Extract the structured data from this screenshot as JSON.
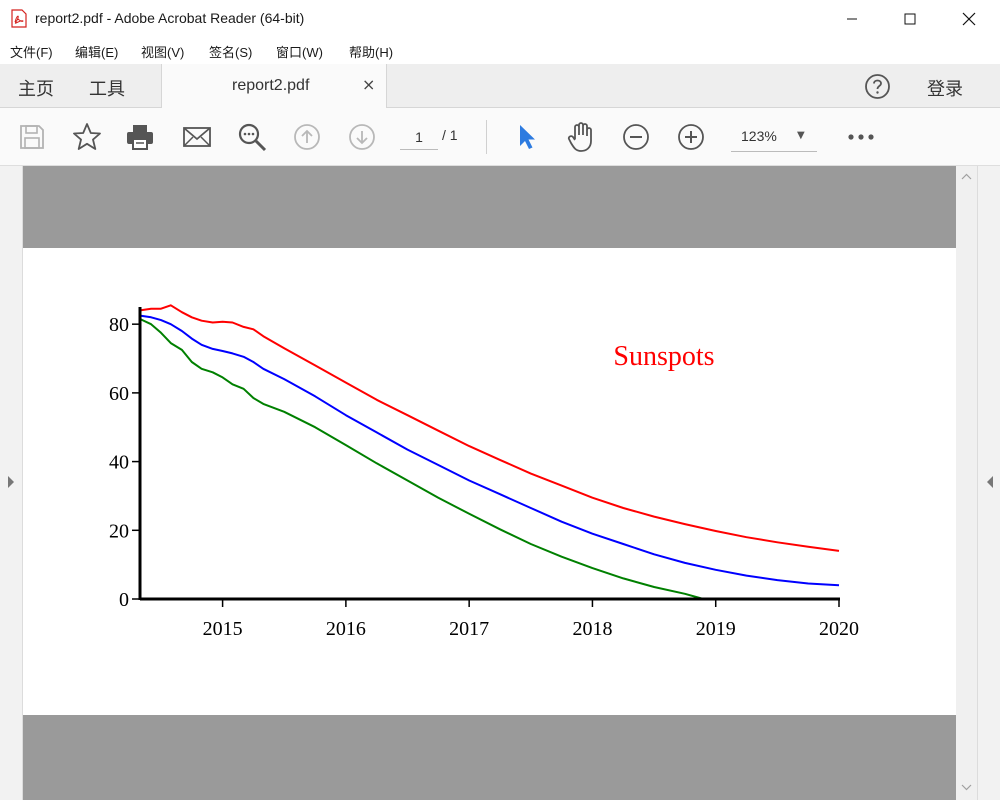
{
  "window": {
    "title": "report2.pdf - Adobe Acrobat Reader (64-bit)"
  },
  "menu": [
    "文件(F)",
    "编辑(E)",
    "视图(V)",
    "签名(S)",
    "窗口(W)",
    "帮助(H)"
  ],
  "tabs": {
    "home": "主页",
    "tools": "工具",
    "document": "report2.pdf",
    "close_symbol": "×",
    "sign_in": "登录"
  },
  "toolbar": {
    "page_current": "1",
    "page_total": "/ 1",
    "zoom": "123%"
  },
  "colors": {
    "accent_blue": "#2d7be0",
    "series_red": "#ff0000",
    "series_blue": "#0000ff",
    "series_green": "#008000"
  },
  "chart_data": {
    "type": "line",
    "annotation": "Sunspots",
    "xlabel": "",
    "ylabel": "",
    "xlim": [
      2014.33,
      2020
    ],
    "ylim": [
      0,
      85
    ],
    "x_ticks": [
      "2015",
      "2016",
      "2017",
      "2018",
      "2019",
      "2020"
    ],
    "y_ticks": [
      "0",
      "20",
      "40",
      "60",
      "80"
    ],
    "legend": "none",
    "grid": false,
    "series": [
      {
        "color": "#ff0000",
        "x": [
          2014.33,
          2014.42,
          2014.5,
          2014.58,
          2014.67,
          2014.75,
          2014.83,
          2014.92,
          2015.0,
          2015.08,
          2015.17,
          2015.25,
          2015.33,
          2015.5,
          2015.75,
          2016.0,
          2016.25,
          2016.5,
          2016.75,
          2017.0,
          2017.25,
          2017.5,
          2017.75,
          2018.0,
          2018.25,
          2018.5,
          2018.75,
          2019.0,
          2019.25,
          2019.5,
          2019.75,
          2020.0
        ],
        "y": [
          84,
          84.5,
          84.5,
          85.5,
          83.5,
          82,
          81,
          80.5,
          80.7,
          80.5,
          79.2,
          78.5,
          76.5,
          73,
          68,
          63,
          58,
          53.5,
          49,
          44.5,
          40.5,
          36.5,
          33,
          29.5,
          26.5,
          24,
          21.8,
          19.8,
          18,
          16.5,
          15.2,
          14
        ]
      },
      {
        "color": "#0000ff",
        "x": [
          2014.33,
          2014.42,
          2014.5,
          2014.58,
          2014.67,
          2014.75,
          2014.83,
          2014.92,
          2015.0,
          2015.08,
          2015.17,
          2015.25,
          2015.33,
          2015.5,
          2015.75,
          2016.0,
          2016.25,
          2016.5,
          2016.75,
          2017.0,
          2017.25,
          2017.5,
          2017.75,
          2018.0,
          2018.25,
          2018.5,
          2018.75,
          2019.0,
          2019.25,
          2019.5,
          2019.75,
          2020.0
        ],
        "y": [
          82.5,
          82,
          81.2,
          80,
          78,
          75.8,
          74,
          72.8,
          72.2,
          71.5,
          70.5,
          69,
          67,
          64,
          59,
          53.5,
          48.5,
          43.5,
          39,
          34.5,
          30.5,
          26.5,
          22.5,
          19,
          16,
          13,
          10.5,
          8.5,
          6.8,
          5.5,
          4.5,
          4
        ]
      },
      {
        "color": "#008000",
        "x": [
          2014.33,
          2014.42,
          2014.5,
          2014.58,
          2014.67,
          2014.75,
          2014.83,
          2014.92,
          2015.0,
          2015.08,
          2015.17,
          2015.25,
          2015.33,
          2015.5,
          2015.75,
          2016.0,
          2016.25,
          2016.5,
          2016.75,
          2017.0,
          2017.25,
          2017.5,
          2017.75,
          2018.0,
          2018.25,
          2018.5,
          2018.75,
          2018.9,
          2019.0,
          2019.25,
          2019.5,
          2019.75,
          2020.0
        ],
        "y": [
          81.5,
          80,
          77.5,
          74.5,
          72.5,
          69,
          67,
          66,
          64.5,
          62.5,
          61.2,
          58.5,
          56.8,
          54.5,
          50,
          44.8,
          39.5,
          34.5,
          29.5,
          24.8,
          20.3,
          16,
          12.3,
          9,
          6,
          3.5,
          1.5,
          0,
          0,
          0,
          0,
          0,
          0
        ]
      }
    ]
  }
}
